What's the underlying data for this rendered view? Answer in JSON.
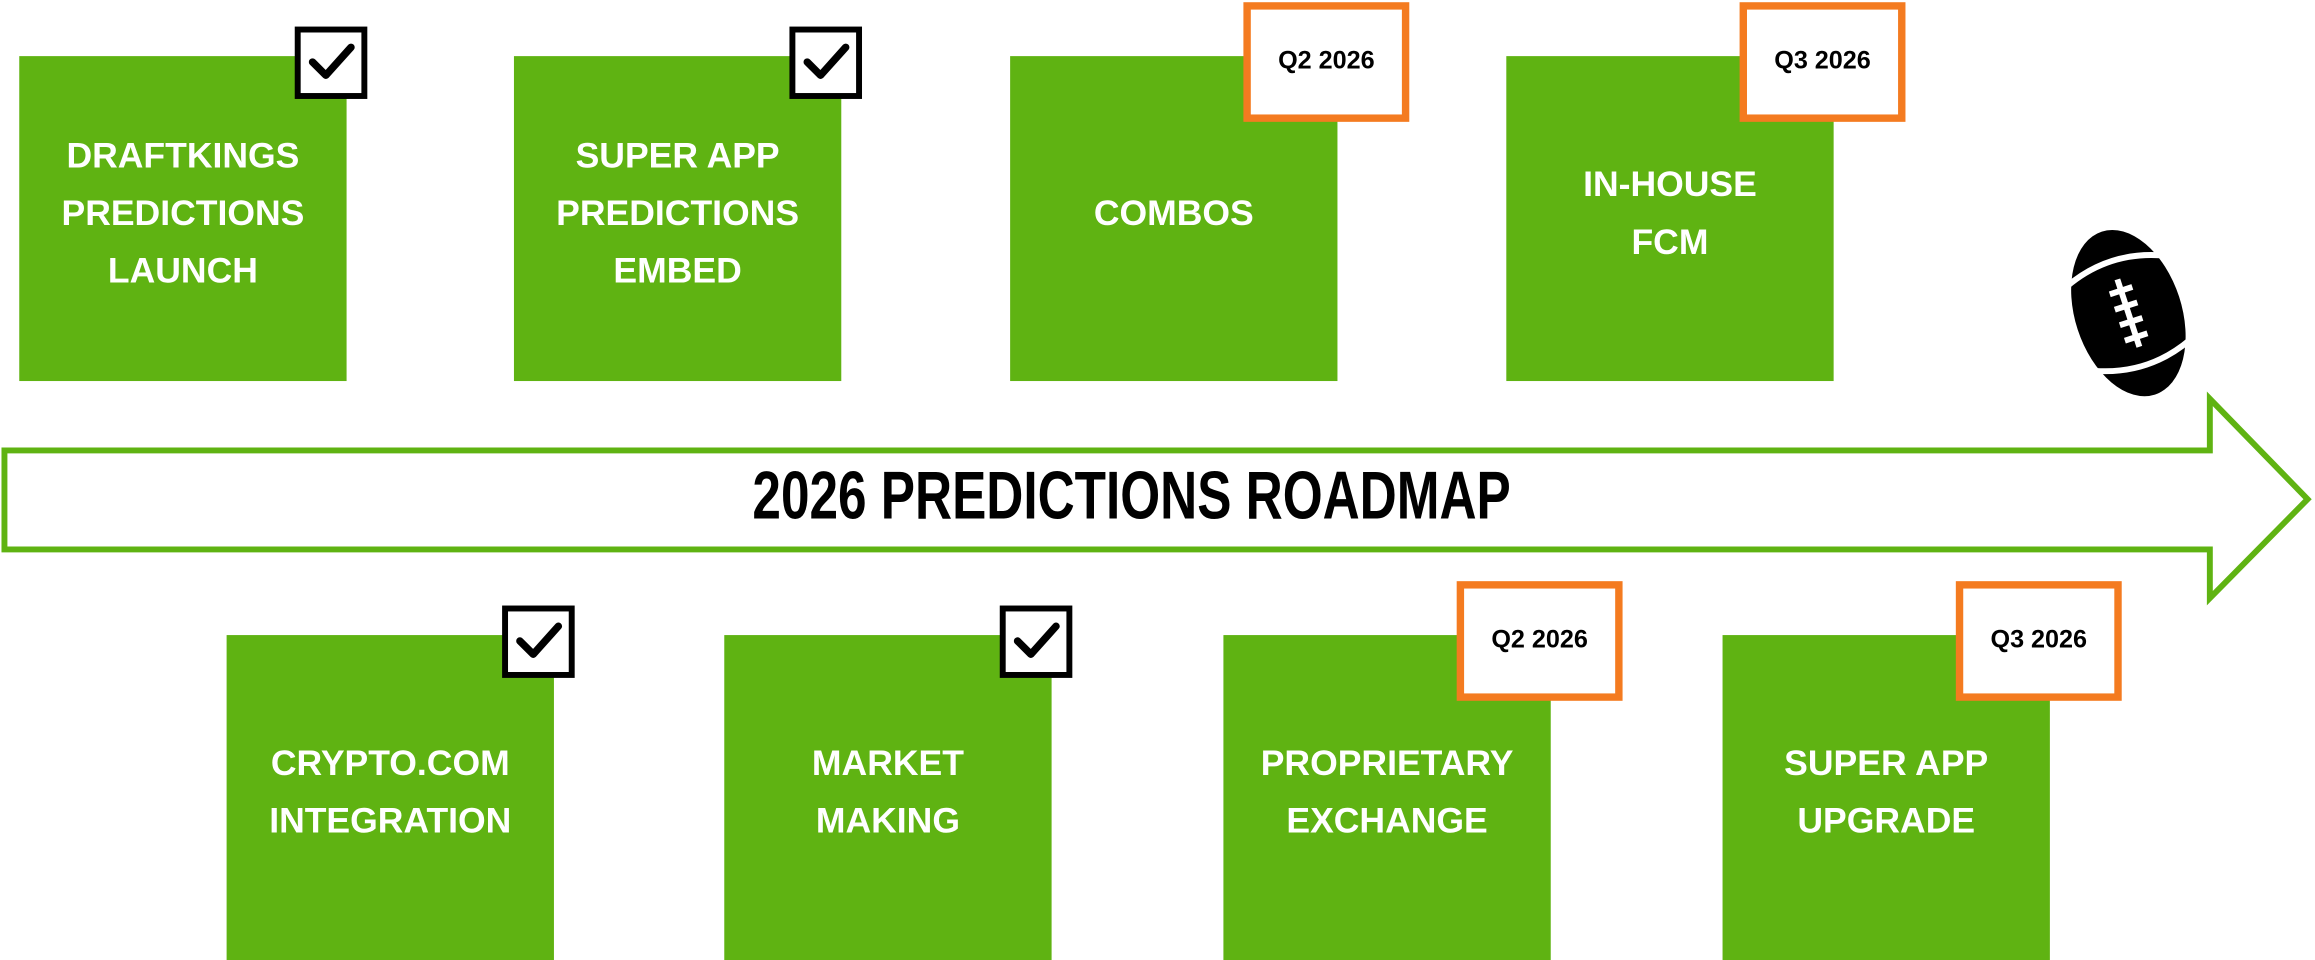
{
  "title": "2026 PREDICTIONS ROADMAP",
  "top_items": [
    {
      "lines": [
        "DRAFTKINGS",
        "PREDICTIONS",
        "LAUNCH"
      ]
    },
    {
      "lines": [
        "SUPER APP",
        "PREDICTIONS",
        "EMBED"
      ]
    },
    {
      "lines": [
        "COMBOS"
      ],
      "badge": "Q2 2026"
    },
    {
      "lines": [
        "IN-HOUSE",
        "FCM"
      ],
      "badge": "Q3 2026"
    }
  ],
  "bottom_items": [
    {
      "lines": [
        "CRYPTO.COM",
        "INTEGRATION"
      ]
    },
    {
      "lines": [
        "MARKET",
        "MAKING"
      ]
    },
    {
      "lines": [
        "PROPRIETARY",
        "EXCHANGE"
      ],
      "badge": "Q2 2026"
    },
    {
      "lines": [
        "SUPER APP",
        "UPGRADE"
      ],
      "badge": "Q3 2026"
    }
  ]
}
